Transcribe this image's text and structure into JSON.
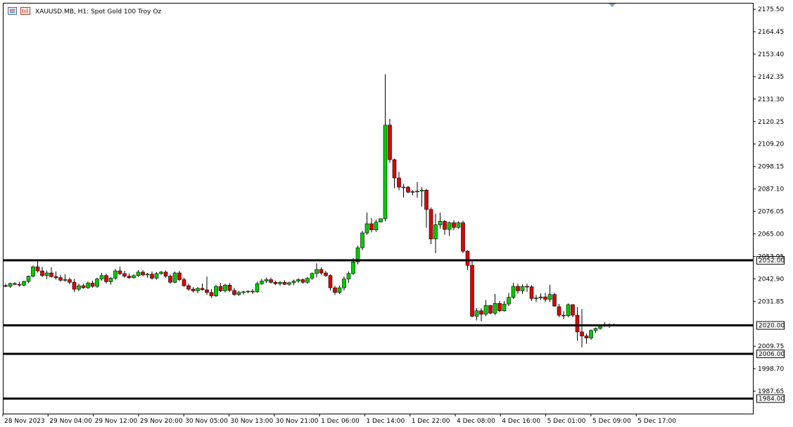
{
  "header": {
    "title": "XAUUSD.MB, H1:  Spot Gold 100 Troy Oz",
    "icons": [
      "chart-menu-icon",
      "chart-bars-icon"
    ]
  },
  "colors": {
    "bull": "#00cc00",
    "bear": "#e00000",
    "wick": "#000000",
    "level_line": "#000000",
    "background": "#ffffff"
  },
  "chart_data": {
    "type": "candlestick",
    "symbol": "XAUUSD.MB",
    "timeframe": "H1",
    "ylim": [
      1976.6,
      2178.3
    ],
    "y_ticks": [
      "2175.50",
      "2164.45",
      "2153.40",
      "2142.35",
      "2131.30",
      "2120.25",
      "2109.20",
      "2098.15",
      "2087.10",
      "2076.05",
      "2065.00",
      "2053.95",
      "2042.90",
      "2031.85",
      "2009.75",
      "1998.70",
      "1987.65"
    ],
    "x_ticks": [
      "28 Nov 2023",
      "29 Nov 04:00",
      "29 Nov 12:00",
      "29 Nov 20:00",
      "30 Nov 05:00",
      "30 Nov 13:00",
      "30 Nov 21:00",
      "1 Dec 06:00",
      "1 Dec 14:00",
      "1 Dec 22:00",
      "4 Dec 08:00",
      "4 Dec 16:00",
      "5 Dec 01:00",
      "5 Dec 09:00",
      "5 Dec 17:00"
    ],
    "levels": [
      "2052.00",
      "2020.00",
      "2006.00",
      "1984.00"
    ],
    "candles": [
      [
        2039.6,
        2040.5,
        2038.8,
        2039.2
      ],
      [
        2039.2,
        2041.0,
        2038.5,
        2040.6
      ],
      [
        2040.6,
        2041.3,
        2039.8,
        2040.2
      ],
      [
        2040.2,
        2041.5,
        2039.0,
        2039.8
      ],
      [
        2039.8,
        2042.0,
        2039.2,
        2041.6
      ],
      [
        2041.6,
        2044.5,
        2040.8,
        2044.2
      ],
      [
        2044.2,
        2049.5,
        2043.6,
        2048.8
      ],
      [
        2048.8,
        2051.5,
        2046.0,
        2046.8
      ],
      [
        2046.8,
        2048.8,
        2043.8,
        2044.5
      ],
      [
        2044.5,
        2047.0,
        2042.8,
        2045.8
      ],
      [
        2045.8,
        2048.5,
        2043.5,
        2044.0
      ],
      [
        2044.0,
        2046.5,
        2042.5,
        2043.5
      ],
      [
        2043.5,
        2044.8,
        2041.5,
        2042.2
      ],
      [
        2042.2,
        2045.2,
        2041.5,
        2042.5
      ],
      [
        2042.5,
        2043.5,
        2040.2,
        2041.2
      ],
      [
        2041.2,
        2042.8,
        2036.5,
        2037.8
      ],
      [
        2037.8,
        2040.5,
        2036.8,
        2039.5
      ],
      [
        2039.5,
        2040.5,
        2038.0,
        2038.5
      ],
      [
        2038.5,
        2041.5,
        2038.0,
        2040.8
      ],
      [
        2040.8,
        2042.0,
        2038.5,
        2039.2
      ],
      [
        2039.2,
        2043.5,
        2038.5,
        2042.8
      ],
      [
        2042.8,
        2045.8,
        2042.0,
        2044.5
      ],
      [
        2044.5,
        2045.5,
        2040.5,
        2041.5
      ],
      [
        2041.5,
        2043.8,
        2040.0,
        2043.2
      ],
      [
        2043.2,
        2047.8,
        2042.5,
        2046.8
      ],
      [
        2046.8,
        2048.8,
        2044.8,
        2045.5
      ],
      [
        2045.5,
        2046.8,
        2043.5,
        2044.2
      ],
      [
        2044.2,
        2045.5,
        2042.8,
        2043.5
      ],
      [
        2043.5,
        2045.2,
        2043.0,
        2044.5
      ],
      [
        2044.5,
        2047.2,
        2043.8,
        2046.2
      ],
      [
        2046.2,
        2047.2,
        2044.2,
        2044.8
      ],
      [
        2044.8,
        2045.8,
        2043.5,
        2045.2
      ],
      [
        2045.2,
        2046.5,
        2042.5,
        2043.2
      ],
      [
        2043.2,
        2046.2,
        2042.5,
        2045.5
      ],
      [
        2045.5,
        2046.8,
        2044.8,
        2046.2
      ],
      [
        2046.2,
        2047.0,
        2043.5,
        2044.2
      ],
      [
        2044.2,
        2045.0,
        2040.5,
        2041.2
      ],
      [
        2041.2,
        2046.5,
        2040.8,
        2045.8
      ],
      [
        2045.8,
        2046.8,
        2041.8,
        2042.5
      ],
      [
        2042.5,
        2043.5,
        2039.0,
        2039.5
      ],
      [
        2039.5,
        2040.5,
        2037.0,
        2037.8
      ],
      [
        2037.8,
        2038.8,
        2036.2,
        2037.0
      ],
      [
        2037.0,
        2038.8,
        2035.8,
        2038.2
      ],
      [
        2038.2,
        2040.5,
        2037.2,
        2037.5
      ],
      [
        2037.5,
        2044.0,
        2035.0,
        2036.2
      ],
      [
        2036.2,
        2037.8,
        2033.5,
        2034.5
      ],
      [
        2034.5,
        2040.0,
        2034.0,
        2039.2
      ],
      [
        2039.2,
        2040.8,
        2036.5,
        2037.0
      ],
      [
        2037.0,
        2040.5,
        2036.2,
        2039.8
      ],
      [
        2039.8,
        2040.8,
        2036.5,
        2037.2
      ],
      [
        2037.2,
        2038.5,
        2034.5,
        2035.2
      ],
      [
        2035.2,
        2037.0,
        2034.5,
        2036.2
      ],
      [
        2036.2,
        2037.0,
        2035.2,
        2036.5
      ],
      [
        2036.5,
        2037.2,
        2035.8,
        2036.8
      ],
      [
        2036.8,
        2037.8,
        2035.5,
        2036.5
      ],
      [
        2036.5,
        2041.5,
        2036.0,
        2040.5
      ],
      [
        2040.5,
        2042.8,
        2039.8,
        2041.8
      ],
      [
        2041.8,
        2043.5,
        2040.8,
        2042.5
      ],
      [
        2042.5,
        2043.5,
        2040.5,
        2041.2
      ],
      [
        2041.2,
        2042.0,
        2039.8,
        2040.5
      ],
      [
        2040.5,
        2041.8,
        2039.5,
        2041.2
      ],
      [
        2041.2,
        2042.2,
        2039.8,
        2040.2
      ],
      [
        2040.2,
        2041.5,
        2039.5,
        2041.0
      ],
      [
        2041.0,
        2042.5,
        2039.8,
        2041.8
      ],
      [
        2041.8,
        2043.2,
        2041.0,
        2042.5
      ],
      [
        2042.5,
        2043.0,
        2040.5,
        2041.2
      ],
      [
        2041.2,
        2043.8,
        2040.5,
        2043.2
      ],
      [
        2043.2,
        2046.0,
        2042.5,
        2045.5
      ],
      [
        2045.5,
        2050.5,
        2043.5,
        2047.5
      ],
      [
        2047.5,
        2048.5,
        2044.8,
        2045.8
      ],
      [
        2045.8,
        2046.8,
        2043.8,
        2044.5
      ],
      [
        2044.5,
        2045.2,
        2037.2,
        2038.5
      ],
      [
        2038.5,
        2039.5,
        2035.0,
        2036.2
      ],
      [
        2036.2,
        2039.5,
        2035.5,
        2038.5
      ],
      [
        2038.5,
        2044.0,
        2037.2,
        2042.8
      ],
      [
        2042.8,
        2046.5,
        2041.0,
        2045.5
      ],
      [
        2045.5,
        2053.0,
        2044.8,
        2051.2
      ],
      [
        2051.2,
        2059.2,
        2050.0,
        2058.2
      ],
      [
        2058.2,
        2066.5,
        2057.0,
        2065.5
      ],
      [
        2065.5,
        2075.5,
        2064.5,
        2070.0
      ],
      [
        2070.0,
        2072.8,
        2065.8,
        2067.0
      ],
      [
        2067.0,
        2072.0,
        2066.0,
        2070.8
      ],
      [
        2070.8,
        2072.5,
        2071.2,
        2072.5
      ],
      [
        2072.5,
        2143.5,
        2071.2,
        2118.5
      ],
      [
        2118.5,
        2121.5,
        2100.0,
        2101.5
      ],
      [
        2101.5,
        2102.0,
        2087.5,
        2092.5
      ],
      [
        2092.5,
        2095.5,
        2086.5,
        2088.0
      ],
      [
        2088.0,
        2089.5,
        2082.8,
        2088.0
      ],
      [
        2088.0,
        2088.5,
        2085.0,
        2085.5
      ],
      [
        2085.5,
        2086.5,
        2084.0,
        2085.8
      ],
      [
        2085.8,
        2090.5,
        2082.8,
        2086.0
      ],
      [
        2086.0,
        2088.0,
        2078.5,
        2086.5
      ],
      [
        2086.5,
        2087.2,
        2068.0,
        2077.0
      ],
      [
        2077.0,
        2078.0,
        2060.0,
        2062.5
      ],
      [
        2062.5,
        2075.0,
        2055.5,
        2069.5
      ],
      [
        2069.5,
        2075.5,
        2067.5,
        2071.2
      ],
      [
        2071.2,
        2071.8,
        2064.5,
        2067.2
      ],
      [
        2067.2,
        2071.0,
        2064.0,
        2070.5
      ],
      [
        2070.5,
        2071.8,
        2066.8,
        2068.2
      ],
      [
        2068.2,
        2071.2,
        2067.5,
        2070.5
      ],
      [
        2070.5,
        2071.5,
        2055.5,
        2056.5
      ],
      [
        2056.5,
        2057.0,
        2047.2,
        2049.5
      ],
      [
        2049.5,
        2052.0,
        2024.0,
        2024.5
      ],
      [
        2024.5,
        2028.5,
        2022.5,
        2027.2
      ],
      [
        2027.2,
        2028.5,
        2022.0,
        2025.5
      ],
      [
        2025.5,
        2032.5,
        2024.5,
        2029.8
      ],
      [
        2029.8,
        2030.0,
        2025.5,
        2026.0
      ],
      [
        2026.0,
        2035.5,
        2025.0,
        2030.8
      ],
      [
        2030.8,
        2032.0,
        2026.5,
        2027.2
      ],
      [
        2027.2,
        2032.0,
        2026.8,
        2030.5
      ],
      [
        2030.5,
        2036.0,
        2029.5,
        2033.8
      ],
      [
        2033.8,
        2041.0,
        2033.0,
        2039.2
      ],
      [
        2039.2,
        2040.5,
        2035.5,
        2037.0
      ],
      [
        2037.0,
        2040.2,
        2035.5,
        2039.2
      ],
      [
        2039.2,
        2040.5,
        2036.5,
        2039.0
      ],
      [
        2039.0,
        2039.8,
        2032.0,
        2033.2
      ],
      [
        2033.2,
        2035.0,
        2031.5,
        2033.5
      ],
      [
        2033.5,
        2035.8,
        2032.5,
        2034.0
      ],
      [
        2034.0,
        2036.0,
        2031.5,
        2032.8
      ],
      [
        2032.8,
        2040.0,
        2031.5,
        2035.2
      ],
      [
        2035.2,
        2036.0,
        2029.2,
        2029.5
      ],
      [
        2029.2,
        2030.5,
        2024.0,
        2025.0
      ],
      [
        2025.0,
        2027.0,
        2023.0,
        2024.8
      ],
      [
        2024.8,
        2030.8,
        2024.0,
        2030.2
      ],
      [
        2030.2,
        2030.5,
        2024.0,
        2025.0
      ],
      [
        2025.0,
        2029.0,
        2012.5,
        2016.8
      ],
      [
        2016.8,
        2028.0,
        2009.2,
        2014.8
      ],
      [
        2014.8,
        2016.0,
        2011.0,
        2013.8
      ],
      [
        2013.8,
        2018.0,
        2013.0,
        2017.5
      ],
      [
        2017.5,
        2019.0,
        2016.2,
        2018.5
      ],
      [
        2018.5,
        2020.5,
        2017.8,
        2020.0
      ],
      [
        2020.0,
        2021.5,
        2019.2,
        2019.8
      ],
      [
        2019.8,
        2021.0,
        2018.8,
        2020.0
      ],
      [
        2020.0,
        2020.8,
        2019.5,
        2020.2
      ]
    ]
  }
}
